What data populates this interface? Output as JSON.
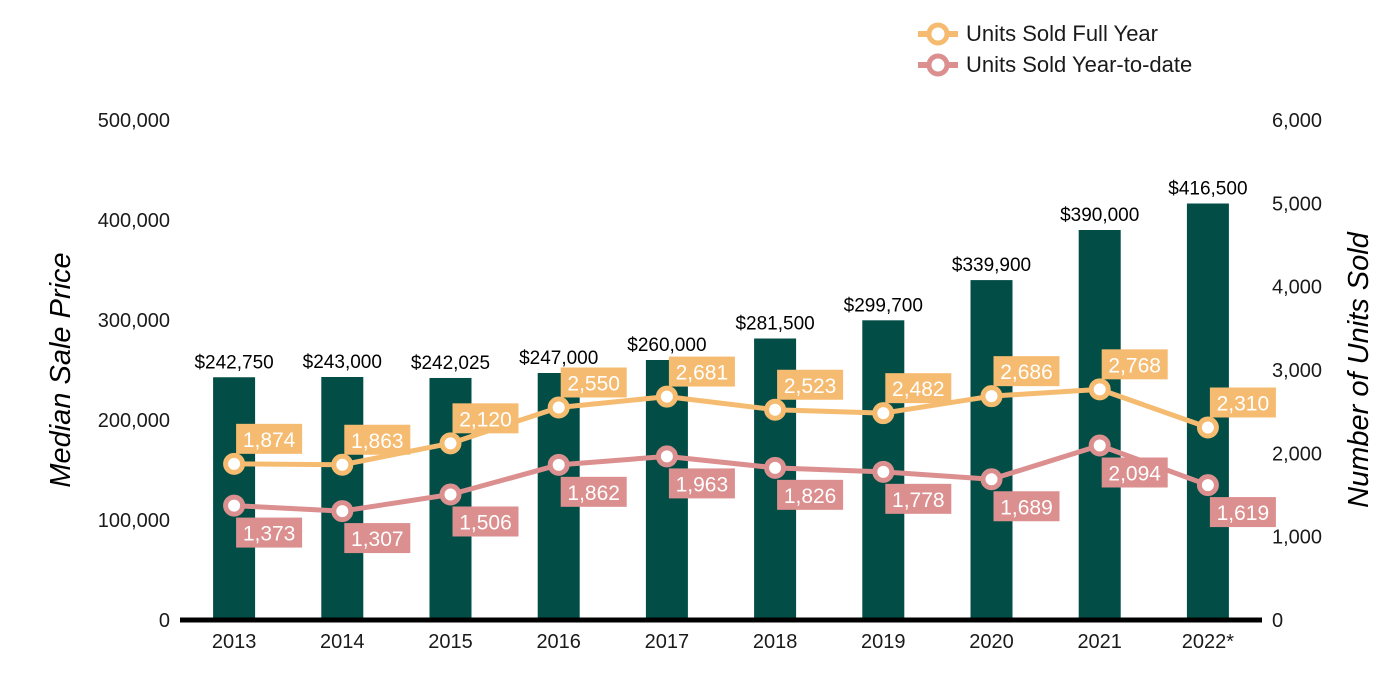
{
  "chart_data": {
    "type": "bar",
    "categories": [
      "2013",
      "2014",
      "2015",
      "2016",
      "2017",
      "2018",
      "2019",
      "2020",
      "2021",
      "2022*"
    ],
    "series": [
      {
        "name": "",
        "kind": "bar",
        "axis": "left",
        "values": [
          242750,
          243000,
          242025,
          247000,
          260000,
          281500,
          299700,
          339900,
          390000,
          416500
        ],
        "labels": [
          "$242,750",
          "$243,000",
          "$242,025",
          "$247,000",
          "$260,000",
          "$281,500",
          "$299,700",
          "$339,900",
          "$390,000",
          "$416,500"
        ],
        "color": "#024d45"
      },
      {
        "name": "Units Sold Full Year",
        "kind": "line",
        "axis": "right",
        "values": [
          1874,
          1863,
          2120,
          2550,
          2681,
          2523,
          2482,
          2686,
          2768,
          2310
        ],
        "labels": [
          "1,874",
          "1,863",
          "2,120",
          "2,550",
          "2,681",
          "2,523",
          "2,482",
          "2,686",
          "2,768",
          "2,310"
        ],
        "color": "#f5bc71"
      },
      {
        "name": "Units Sold Year-to-date",
        "kind": "line",
        "axis": "right",
        "values": [
          1373,
          1307,
          1506,
          1862,
          1963,
          1826,
          1778,
          1689,
          2094,
          1619
        ],
        "labels": [
          "1,373",
          "1,307",
          "1,506",
          "1,862",
          "1,963",
          "1,826",
          "1,778",
          "1,689",
          "2,094",
          "1,619"
        ],
        "color": "#db8f8f"
      }
    ],
    "ylabel": "Median Sale Price",
    "y2label": "Number of Units Sold",
    "ylim": [
      0,
      500000
    ],
    "y2lim": [
      0,
      6000
    ],
    "yticks": [
      0,
      100000,
      200000,
      300000,
      400000,
      500000
    ],
    "ytick_labels": [
      "0",
      "100,000",
      "200,000",
      "300,000",
      "400,000",
      "500,000"
    ],
    "y2ticks": [
      0,
      1000,
      2000,
      3000,
      4000,
      5000,
      6000
    ],
    "y2tick_labels": [
      "0",
      "1,000",
      "2,000",
      "3,000",
      "4,000",
      "5,000",
      "6,000"
    ],
    "grid": false,
    "legend_position": "top-right",
    "colors": {
      "bar": "#024d45",
      "full_year": "#f5bc71",
      "ytd": "#db8f8f",
      "axis": "#000000",
      "text": "#1a1a1a"
    }
  }
}
